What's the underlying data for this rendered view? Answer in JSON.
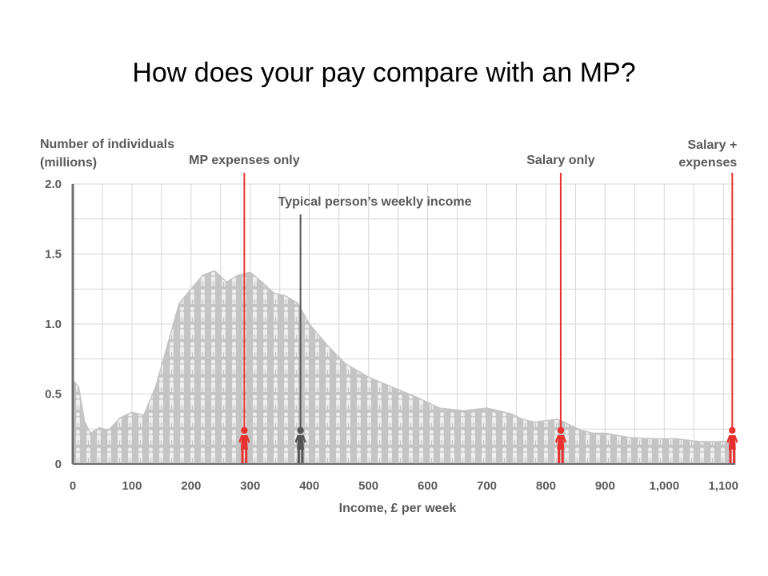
{
  "slide_title": "How does your pay compare with an MP?",
  "chart_data": {
    "type": "area",
    "ylabel_lines": [
      "Number of individuals",
      "(millions)"
    ],
    "xlabel": "Income, £ per week",
    "x_ticks": [
      "0",
      "100",
      "200",
      "300",
      "400",
      "500",
      "600",
      "700",
      "800",
      "900",
      "1,000",
      "1,100"
    ],
    "y_ticks": [
      "0",
      "0.5",
      "1.0",
      "1.5",
      "2.0"
    ],
    "xlim": [
      0,
      1120
    ],
    "ylim": [
      0,
      2.0
    ],
    "grid": true,
    "series": [
      {
        "x": [
          0,
          10,
          20,
          30,
          45,
          60,
          80,
          100,
          120,
          140,
          160,
          180,
          200,
          220,
          240,
          260,
          280,
          300,
          320,
          340,
          360,
          380,
          400,
          430,
          460,
          500,
          540,
          580,
          620,
          660,
          700,
          740,
          760,
          780,
          800,
          820,
          840,
          860,
          880,
          900,
          940,
          980,
          1020,
          1060,
          1100,
          1120
        ],
        "values": [
          0.6,
          0.55,
          0.3,
          0.22,
          0.26,
          0.24,
          0.33,
          0.37,
          0.35,
          0.55,
          0.85,
          1.15,
          1.25,
          1.35,
          1.38,
          1.3,
          1.35,
          1.37,
          1.3,
          1.22,
          1.2,
          1.15,
          1.0,
          0.85,
          0.72,
          0.62,
          0.55,
          0.48,
          0.4,
          0.38,
          0.4,
          0.36,
          0.32,
          0.3,
          0.31,
          0.32,
          0.28,
          0.24,
          0.22,
          0.22,
          0.19,
          0.18,
          0.18,
          0.16,
          0.16,
          0.16
        ]
      }
    ],
    "markers": [
      {
        "label": "MP expenses only",
        "x": 290,
        "color": "#e8312f"
      },
      {
        "label": "Typical person’s weekly income",
        "x": 385,
        "color": "#555555"
      },
      {
        "label": "Salary only",
        "x": 825,
        "color": "#e8312f"
      },
      {
        "label": "Salary +",
        "label2": "expenses",
        "x": 1115,
        "color": "#e8312f"
      }
    ]
  }
}
